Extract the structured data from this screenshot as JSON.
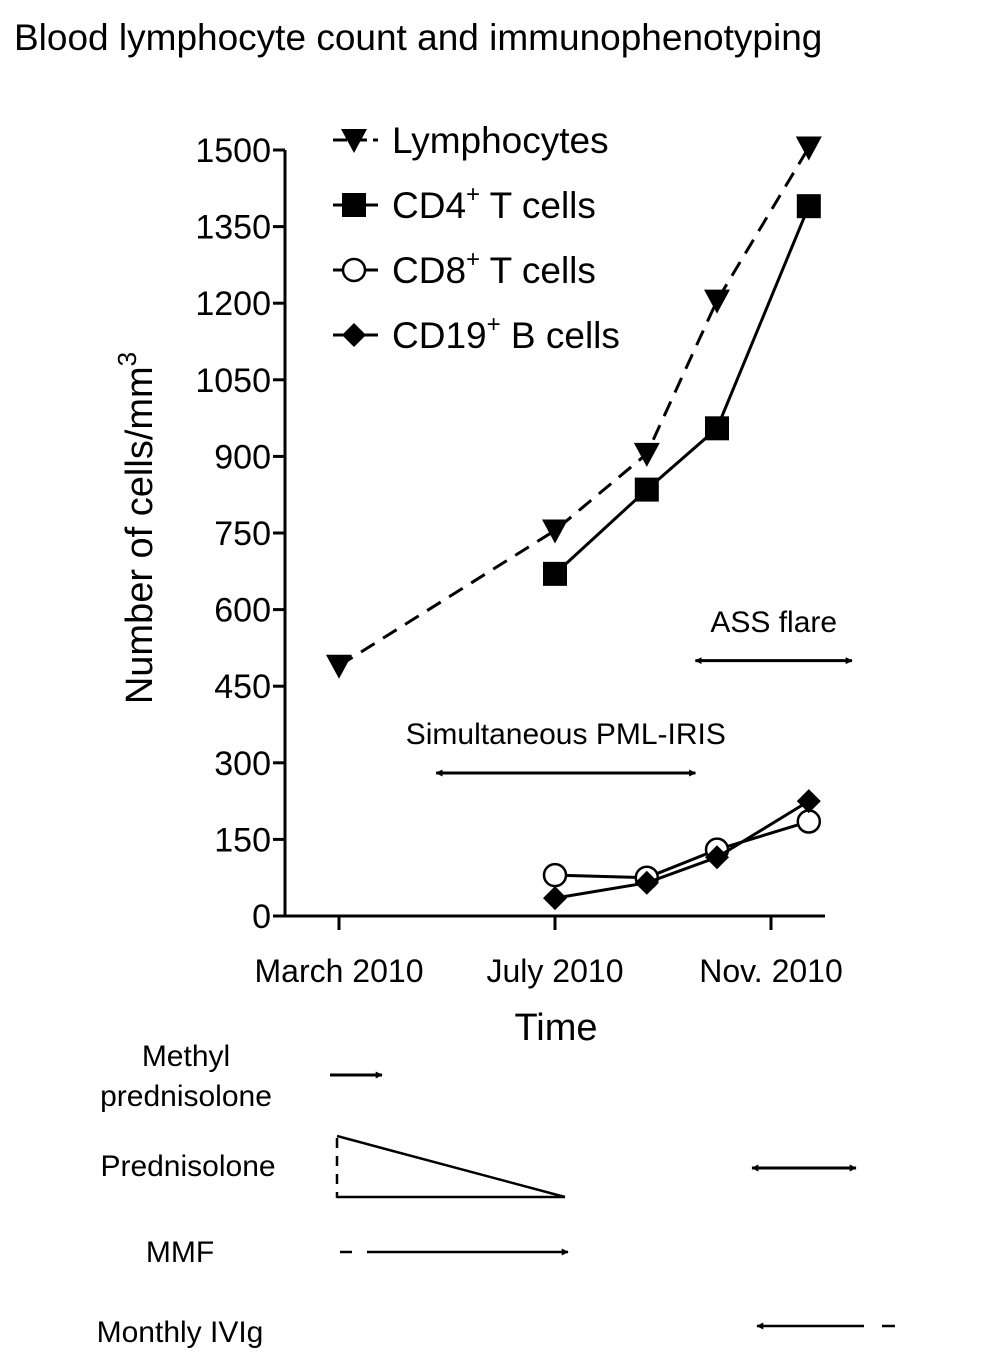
{
  "chart_data": {
    "type": "line",
    "title": "Blood lymphocyte count and immunophenotyping",
    "xlabel": "Time",
    "ylabel": "Number of cells/mm",
    "ylabel_superscript": "3",
    "ylim": [
      0,
      1500
    ],
    "yticks": [
      0,
      150,
      300,
      450,
      600,
      750,
      900,
      1050,
      1200,
      1350,
      1500
    ],
    "xtick_labels": [
      "March 2010",
      "July 2010",
      "Nov. 2010"
    ],
    "xtick_positions": [
      0,
      4,
      8
    ],
    "xlim": [
      -1,
      9
    ],
    "legend_position": "top-left",
    "series": [
      {
        "name": "Lymphocytes",
        "color": "#000000",
        "marker": "triangle-down",
        "line": "dashed",
        "x": [
          0,
          4,
          5.7,
          7,
          8.7
        ],
        "values": [
          490,
          755,
          905,
          1205,
          1505
        ]
      },
      {
        "name": "CD4",
        "sup": "+",
        "suffix": " T cells",
        "color": "#000000",
        "marker": "square",
        "line": "solid",
        "x": [
          4,
          5.7,
          7,
          8.7
        ],
        "values": [
          670,
          835,
          955,
          1390
        ]
      },
      {
        "name": "CD8",
        "sup": "+",
        "suffix": " T cells",
        "color": "#000000",
        "marker": "circle-open",
        "line": "solid",
        "x": [
          4,
          5.7,
          7,
          8.7
        ],
        "values": [
          80,
          75,
          130,
          185
        ]
      },
      {
        "name": "CD19",
        "sup": "+",
        "suffix": " B cells",
        "color": "#000000",
        "marker": "diamond",
        "line": "solid",
        "x": [
          4,
          5.7,
          7,
          8.7
        ],
        "values": [
          35,
          65,
          115,
          225
        ]
      }
    ],
    "annotations": [
      {
        "text": "Simultaneous PML-IRIS",
        "x_start": 1.8,
        "x_end": 6.6,
        "y": 280,
        "label_y": 360
      },
      {
        "text": "ASS flare",
        "x_start": 6.6,
        "x_end": 9.5,
        "y": 500,
        "label_y": 580
      }
    ]
  },
  "treatments": [
    {
      "label": "Methyl",
      "label2": "prednisolone"
    },
    {
      "label": "Prednisolone"
    },
    {
      "label": "MMF"
    },
    {
      "label": "Monthly IVIg"
    }
  ]
}
